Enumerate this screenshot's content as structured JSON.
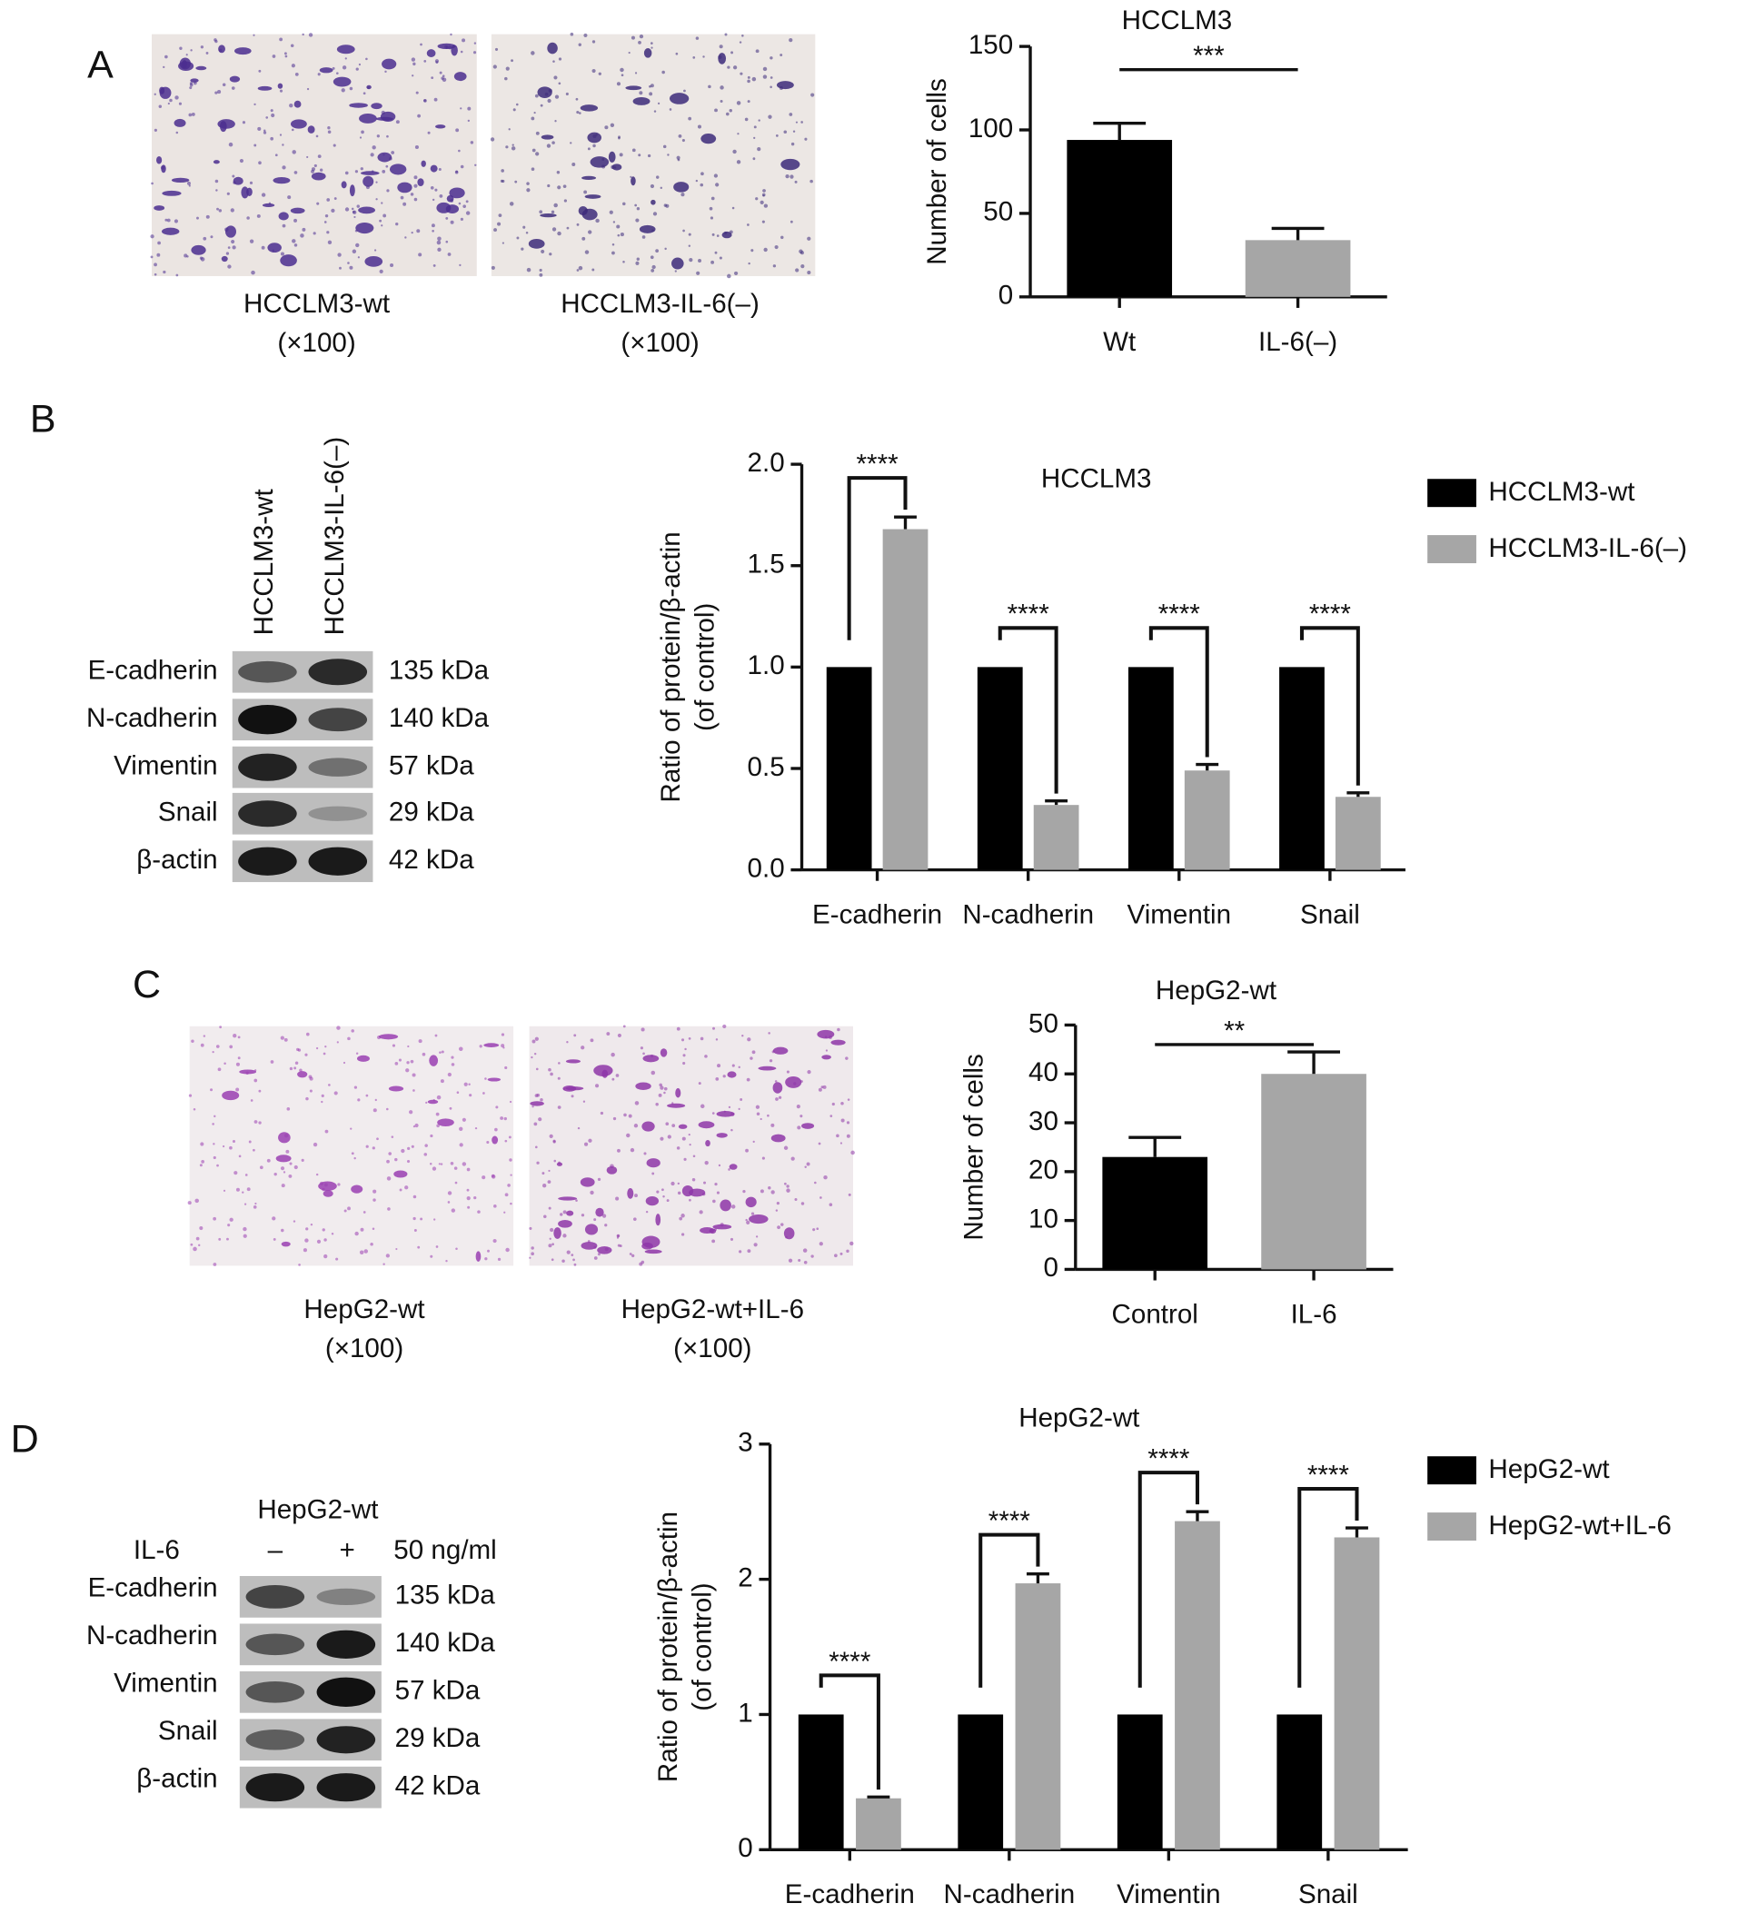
{
  "figure": {
    "panels": [
      "A",
      "B",
      "C",
      "D"
    ],
    "micrographs": [
      {
        "label": "HCCLM3-wt",
        "magnification": "(×100)"
      },
      {
        "label": "HCCLM3-IL-6(–)",
        "magnification": "(×100)"
      },
      {
        "label": "HepG2-wt",
        "magnification": "(×100)"
      },
      {
        "label": "HepG2-wt+IL-6",
        "magnification": "(×100)"
      }
    ],
    "blots": [
      {
        "lanes": [
          "HCCLM3-wt",
          "HCCLM3-IL-6(–)"
        ],
        "proteins": [
          "E-cadherin",
          "N-cadherin",
          "Vimentin",
          "Snail",
          "β-actin"
        ],
        "sizes": [
          "135 kDa",
          "140 kDa",
          "57 kDa",
          "29 kDa",
          "42 kDa"
        ]
      },
      {
        "title": "HepG2-wt",
        "treatment": "IL-6",
        "lanes": [
          "–",
          "+"
        ],
        "dose": "50 ng/ml",
        "proteins": [
          "E-cadherin",
          "N-cadherin",
          "Vimentin",
          "Snail",
          "β-actin"
        ],
        "sizes": [
          "135 kDa",
          "140 kDa",
          "57 kDa",
          "29 kDa",
          "42 kDa"
        ]
      }
    ]
  },
  "chart_data": [
    {
      "type": "bar",
      "title": "HCCLM3",
      "ylabel": "Number of cells",
      "categories": [
        "Wt",
        "IL-6(–)"
      ],
      "values": [
        94,
        34
      ],
      "errors": [
        10,
        7
      ],
      "colors": [
        "#000000",
        "#a6a6a6"
      ],
      "ylim": [
        0,
        150
      ],
      "yticks": [
        0,
        50,
        100,
        150
      ],
      "significance": "***"
    },
    {
      "type": "bar",
      "title": "HCCLM3",
      "ylabel": [
        "Ratio of protein/β-actin",
        "(of control)"
      ],
      "categories": [
        "E-cadherin",
        "N-cadherin",
        "Vimentin",
        "Snail"
      ],
      "series": [
        {
          "name": "HCCLM3-wt",
          "color": "#000000",
          "values": [
            1,
            1,
            1,
            1
          ]
        },
        {
          "name": "HCCLM3-IL-6(–)",
          "color": "#a6a6a6",
          "values": [
            1.68,
            0.32,
            0.49,
            0.36
          ],
          "errors": [
            0.06,
            0.02,
            0.03,
            0.02
          ]
        }
      ],
      "ylim": [
        0,
        2
      ],
      "yticks": [
        {
          "value": 0,
          "label": "0.0"
        },
        0.5,
        {
          "value": 1,
          "label": "1.0"
        },
        1.5,
        {
          "value": 2,
          "label": "2.0"
        }
      ],
      "significance": [
        "****",
        "****",
        "****",
        "****"
      ],
      "legend": "right"
    },
    {
      "type": "bar",
      "title": "HepG2-wt",
      "ylabel": "Number of cells",
      "categories": [
        "Control",
        "IL-6"
      ],
      "values": [
        23,
        40
      ],
      "errors": [
        4,
        4.5
      ],
      "colors": [
        "#000000",
        "#a6a6a6"
      ],
      "ylim": [
        0,
        50
      ],
      "yticks": [
        0,
        10,
        20,
        30,
        40,
        50
      ],
      "significance": "**"
    },
    {
      "type": "bar",
      "title": "HepG2-wt",
      "ylabel": [
        "Ratio of protein/β-actin",
        "(of control)"
      ],
      "categories": [
        "E-cadherin",
        "N-cadherin",
        "Vimentin",
        "Snail"
      ],
      "series": [
        {
          "name": "HepG2-wt",
          "color": "#000000",
          "values": [
            1,
            1,
            1,
            1
          ]
        },
        {
          "name": "HepG2-wt+IL-6",
          "color": "#a6a6a6",
          "values": [
            0.38,
            1.97,
            2.43,
            2.31
          ],
          "errors": [
            0.01,
            0.07,
            0.07,
            0.07
          ]
        }
      ],
      "ylim": [
        0,
        3
      ],
      "yticks": [
        0,
        1,
        2,
        3
      ],
      "significance": [
        "****",
        "****",
        "****",
        "****"
      ],
      "legend": "right"
    }
  ]
}
